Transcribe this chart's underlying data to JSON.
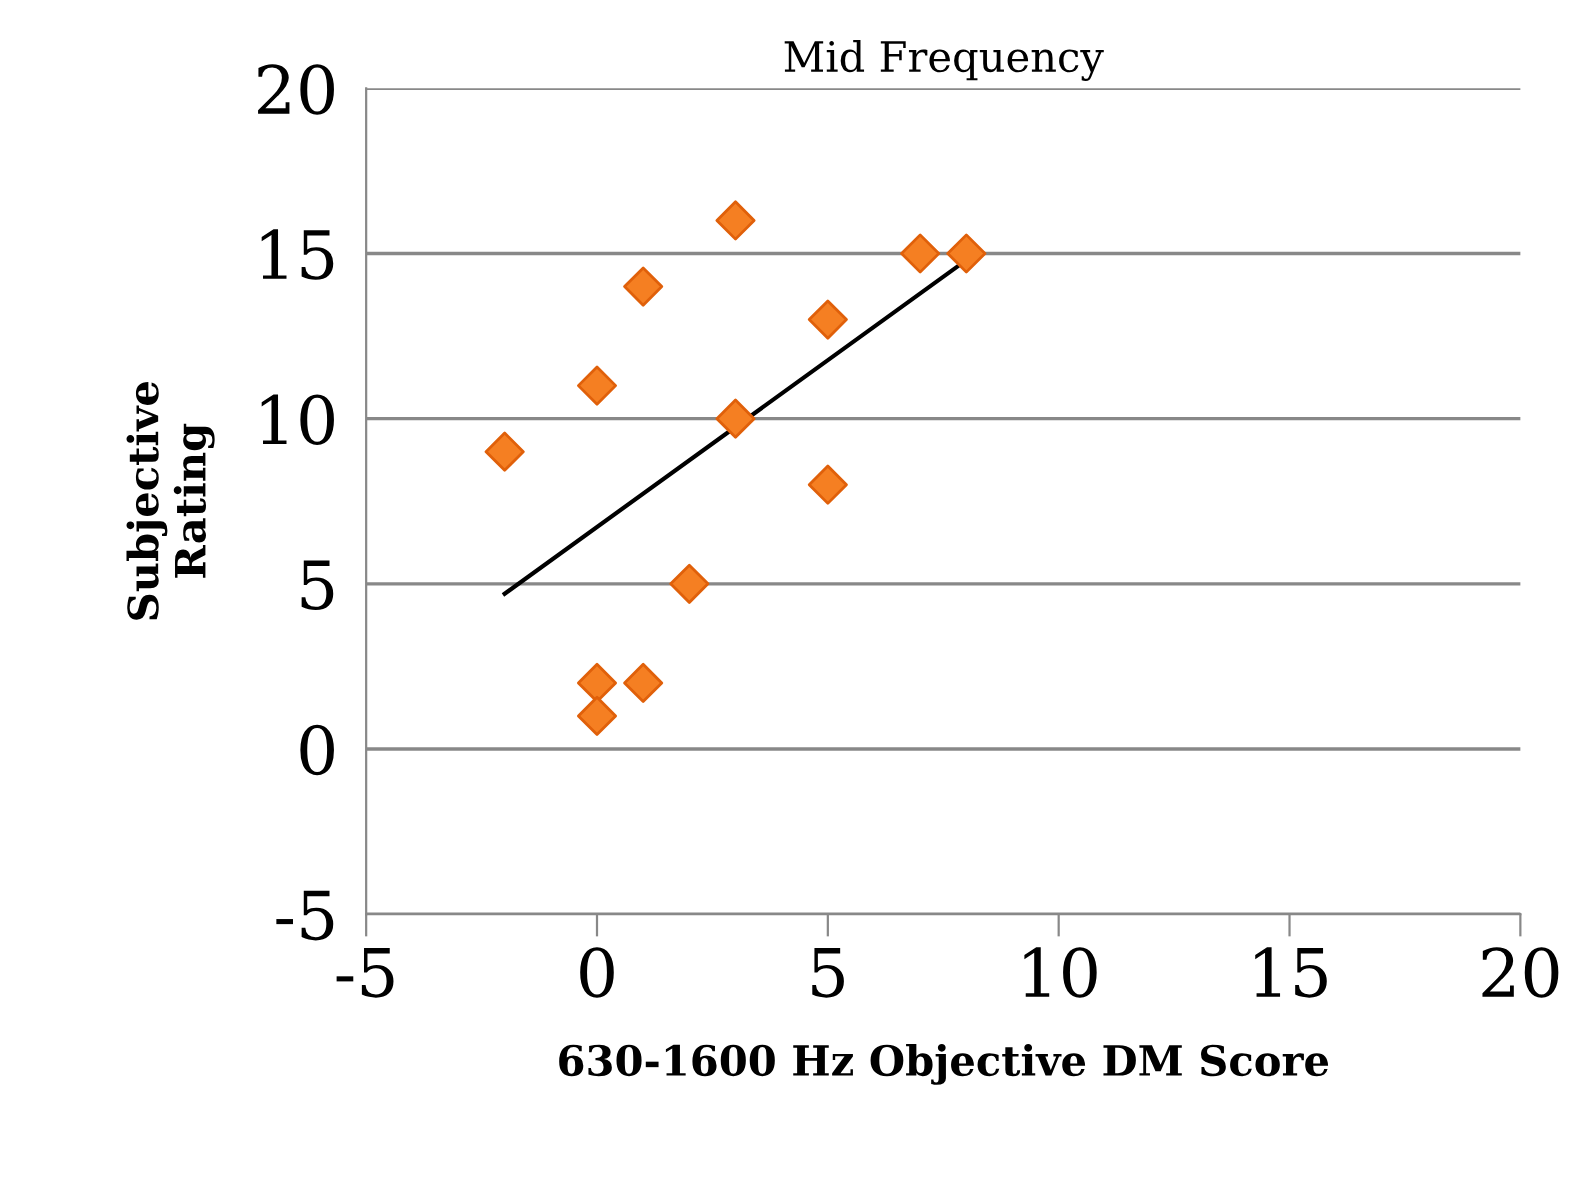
{
  "chart_data": {
    "type": "scatter",
    "title": "Mid Frequency",
    "xlabel": "630-1600 Hz Objective DM Score",
    "ylabel": "Subjective\nRating",
    "series": [
      {
        "color": "#f57f22",
        "x": [
          -2,
          0,
          0,
          0,
          1,
          1,
          2,
          3,
          3,
          5,
          5,
          7,
          8
        ],
        "values": [
          9,
          11,
          2,
          1,
          14,
          2,
          5,
          16,
          10,
          13,
          8,
          15,
          15
        ],
        "marker": "diamond"
      },
      {
        "type": "line",
        "color": "#000000",
        "x": [
          -2,
          8
        ],
        "values": [
          4.7,
          14.8
        ],
        "marker": "none"
      }
    ],
    "xlim": [
      -5,
      20
    ],
    "xticks": [
      -5,
      0,
      5,
      10,
      15,
      20
    ],
    "ylim": [
      -5,
      20
    ],
    "yticks": [
      -5,
      0,
      5,
      10,
      15,
      20
    ],
    "grid": "y",
    "legend": false
  }
}
